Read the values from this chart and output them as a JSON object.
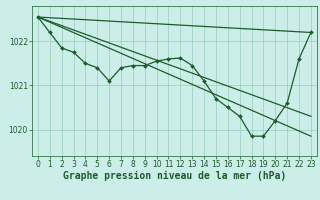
{
  "background_color": "#cceee8",
  "grid_color": "#99ccbb",
  "line_color": "#1a5c2a",
  "xlabel": "Graphe pression niveau de la mer (hPa)",
  "xlabel_fontsize": 7.0,
  "tick_fontsize": 5.5,
  "ylim": [
    1019.4,
    1022.8
  ],
  "xlim": [
    -0.5,
    23.5
  ],
  "yticks": [
    1020,
    1021,
    1022
  ],
  "xticks": [
    0,
    1,
    2,
    3,
    4,
    5,
    6,
    7,
    8,
    9,
    10,
    11,
    12,
    13,
    14,
    15,
    16,
    17,
    18,
    19,
    20,
    21,
    22,
    23
  ],
  "line1": {
    "x": [
      0,
      23
    ],
    "y": [
      1022.55,
      1022.2
    ]
  },
  "line2": {
    "x": [
      0,
      23
    ],
    "y": [
      1022.55,
      1019.85
    ]
  },
  "line3": {
    "x": [
      0,
      23
    ],
    "y": [
      1022.55,
      1020.3
    ]
  },
  "main_line": {
    "x": [
      0,
      1,
      2,
      3,
      4,
      5,
      6,
      7,
      8,
      9,
      10,
      11,
      12,
      13,
      14,
      15,
      16,
      17,
      18,
      19,
      20,
      21,
      22,
      23
    ],
    "y": [
      1022.55,
      1022.2,
      1021.85,
      1021.75,
      1021.5,
      1021.4,
      1021.1,
      1021.4,
      1021.45,
      1021.45,
      1021.55,
      1021.6,
      1021.62,
      1021.45,
      1021.1,
      1020.7,
      1020.5,
      1020.3,
      1019.85,
      1019.85,
      1020.2,
      1020.6,
      1021.6,
      1022.2
    ]
  }
}
